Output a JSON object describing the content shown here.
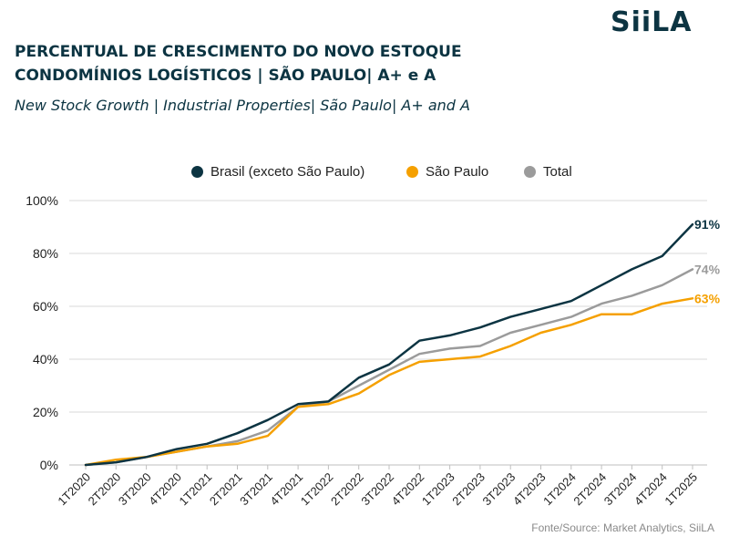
{
  "brand": {
    "logo_text": "SiiLA"
  },
  "header": {
    "title_line1": "PERCENTUAL DE CRESCIMENTO DO NOVO ESTOQUE",
    "title_line2": "CONDOMÍNIOS LOGÍSTICOS | SÃO PAULO| A+ e A",
    "subtitle": "New Stock Growth | Industrial Properties| São Paulo| A+ and A"
  },
  "legend": [
    {
      "label": "Brasil (exceto São Paulo)",
      "color": "#0c3442"
    },
    {
      "label": "São Paulo",
      "color": "#f5a000"
    },
    {
      "label": "Total",
      "color": "#9b9b9b"
    }
  ],
  "source": "Fonte/Source: Market Analytics, SiiLA",
  "chart_data": {
    "type": "line",
    "categories": [
      "1T2020",
      "2T2020",
      "3T2020",
      "4T2020",
      "1T2021",
      "2T2021",
      "3T2021",
      "4T2021",
      "1T2022",
      "2T2022",
      "3T2022",
      "4T2022",
      "1T2023",
      "2T2023",
      "3T2023",
      "4T2023",
      "1T2024",
      "2T2024",
      "3T2024",
      "4T2024",
      "1T2025"
    ],
    "series": [
      {
        "name": "Brasil (exceto São Paulo)",
        "color": "#0c3442",
        "values": [
          0,
          1,
          3,
          6,
          8,
          12,
          17,
          23,
          24,
          33,
          38,
          47,
          49,
          52,
          56,
          59,
          62,
          68,
          74,
          79,
          91
        ],
        "end_label": "91%"
      },
      {
        "name": "São Paulo",
        "color": "#f5a000",
        "values": [
          0,
          2,
          3,
          5,
          7,
          8,
          11,
          22,
          23,
          27,
          34,
          39,
          40,
          41,
          45,
          50,
          53,
          57,
          57,
          61,
          63
        ],
        "end_label": "63%"
      },
      {
        "name": "Total",
        "color": "#9b9b9b",
        "values": [
          0,
          1,
          3,
          5,
          7,
          9,
          13,
          22,
          24,
          30,
          36,
          42,
          44,
          45,
          50,
          53,
          56,
          61,
          64,
          68,
          74
        ],
        "end_label": "74%"
      }
    ],
    "y_ticks": [
      "0%",
      "20%",
      "40%",
      "60%",
      "80%",
      "100%"
    ],
    "ylim": [
      0,
      100
    ],
    "grid": true,
    "legend_position": "top-center"
  }
}
